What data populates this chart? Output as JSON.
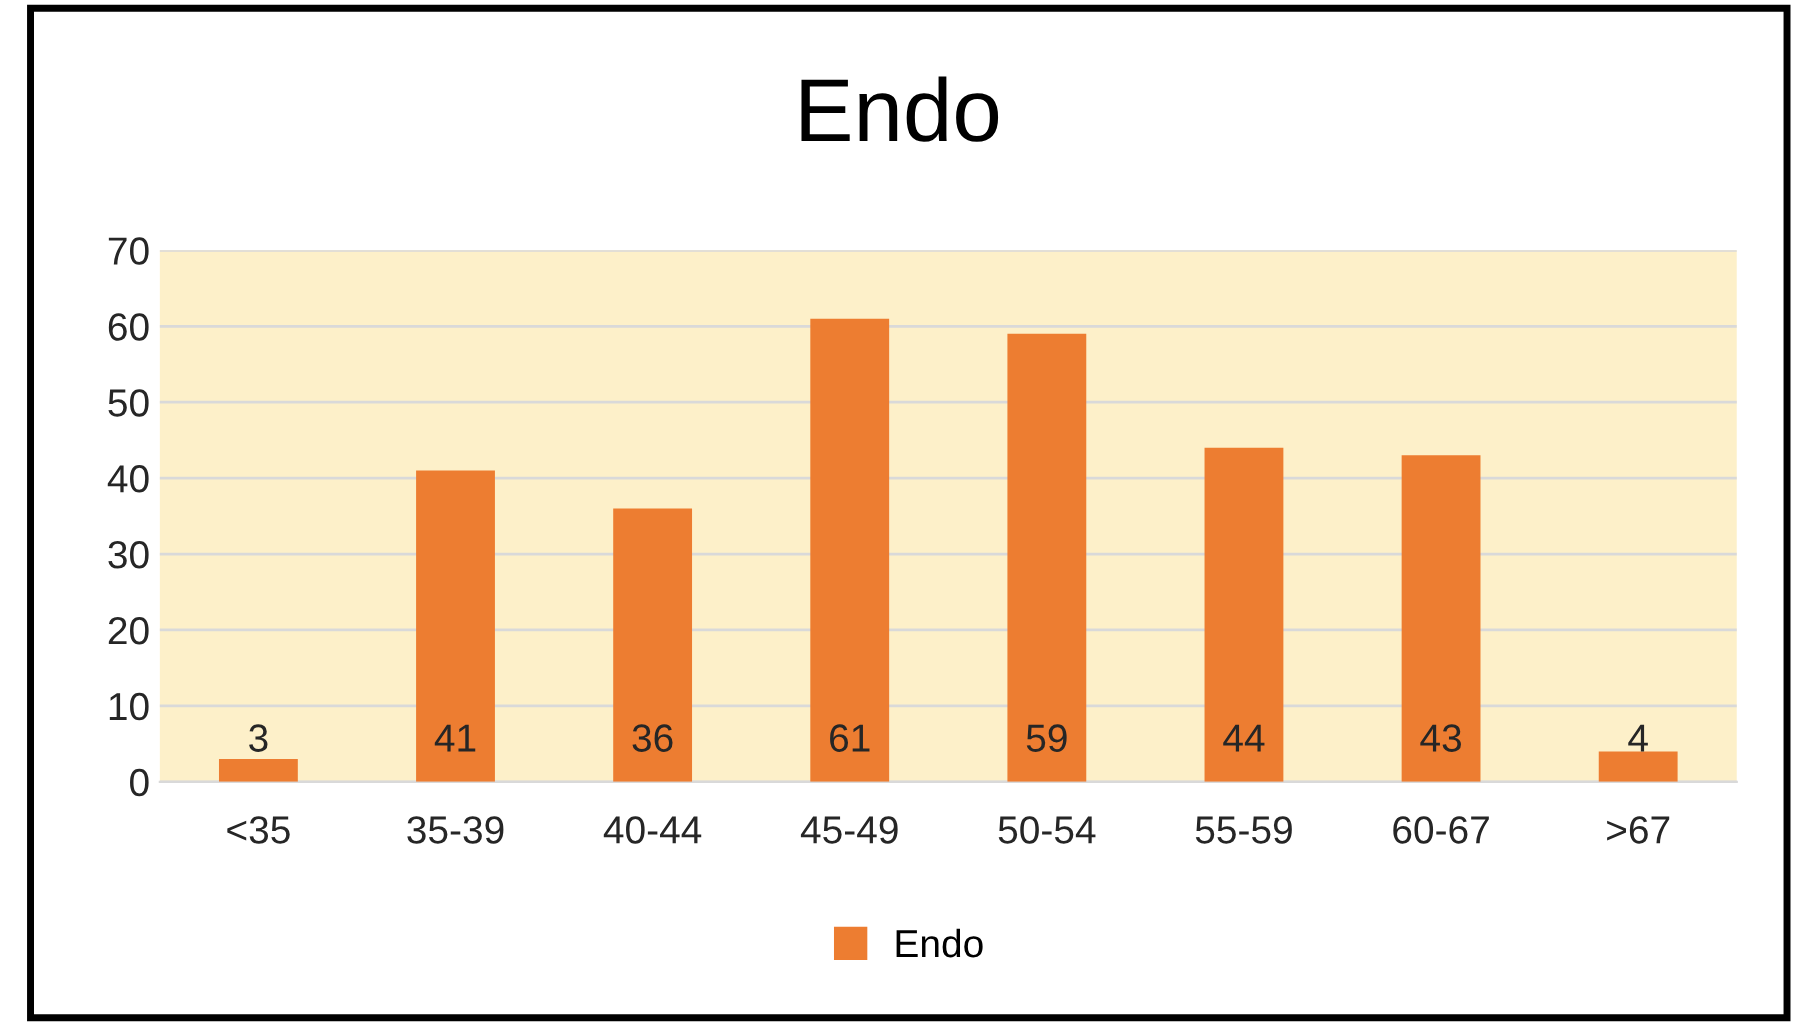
{
  "chart_data": {
    "type": "bar",
    "title": "Endo",
    "categories": [
      "<35",
      "35-39",
      "40-44",
      "45-49",
      "50-54",
      "55-59",
      "60-67",
      ">67"
    ],
    "series": [
      {
        "name": "Endo",
        "color": "#ed7d31",
        "values": [
          3,
          41,
          36,
          61,
          59,
          44,
          43,
          4
        ]
      }
    ],
    "ylim": [
      0,
      70
    ],
    "yticks": [
      0,
      10,
      20,
      30,
      40,
      50,
      60,
      70
    ],
    "grid": "y",
    "legend": "bottom",
    "data_labels": true
  }
}
